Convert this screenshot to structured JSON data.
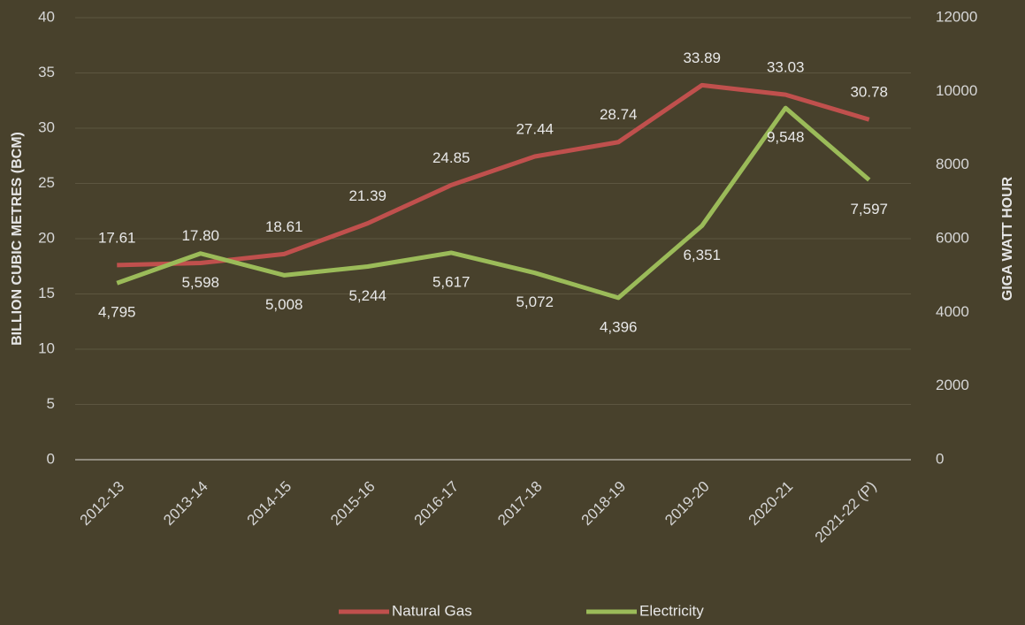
{
  "chart_data": {
    "type": "line",
    "categories": [
      "2012-13",
      "2013-14",
      "2014-15",
      "2015-16",
      "2016-17",
      "2017-18",
      "2018-19",
      "2019-20",
      "2020-21",
      "2021-22 (P)"
    ],
    "ylabel": "BILLION CUBIC METRES (BCM)",
    "y2label": "GIGA WATT HOUR",
    "ylim": [
      0,
      40
    ],
    "yticks": [
      0,
      5,
      10,
      15,
      20,
      25,
      30,
      35,
      40
    ],
    "y2lim": [
      0,
      12000
    ],
    "y2ticks": [
      0,
      2000,
      4000,
      6000,
      8000,
      10000,
      12000
    ],
    "grid": true,
    "legend": "bottom",
    "series": [
      {
        "name": "Natural Gas",
        "color": "#c0504d",
        "values": [
          17.61,
          17.8,
          18.61,
          21.39,
          24.85,
          27.44,
          28.74,
          33.89,
          33.03,
          30.78
        ],
        "value_labels": [
          "17.61",
          "17.80",
          "18.61",
          "21.39",
          "24.85",
          "27.44",
          "28.74",
          "33.89",
          "33.03",
          "30.78"
        ]
      },
      {
        "name": "Electricity",
        "color": "#9bbb59",
        "axis": "y2",
        "values": [
          4795,
          5598,
          5008,
          5244,
          5617,
          5072,
          4396,
          6351,
          9548,
          7597
        ],
        "value_labels": [
          "4,795",
          "5,598",
          "5,008",
          "5,244",
          "5,617",
          "5,072",
          "4,396",
          "6,351",
          "9,548",
          "7,597"
        ]
      }
    ]
  }
}
